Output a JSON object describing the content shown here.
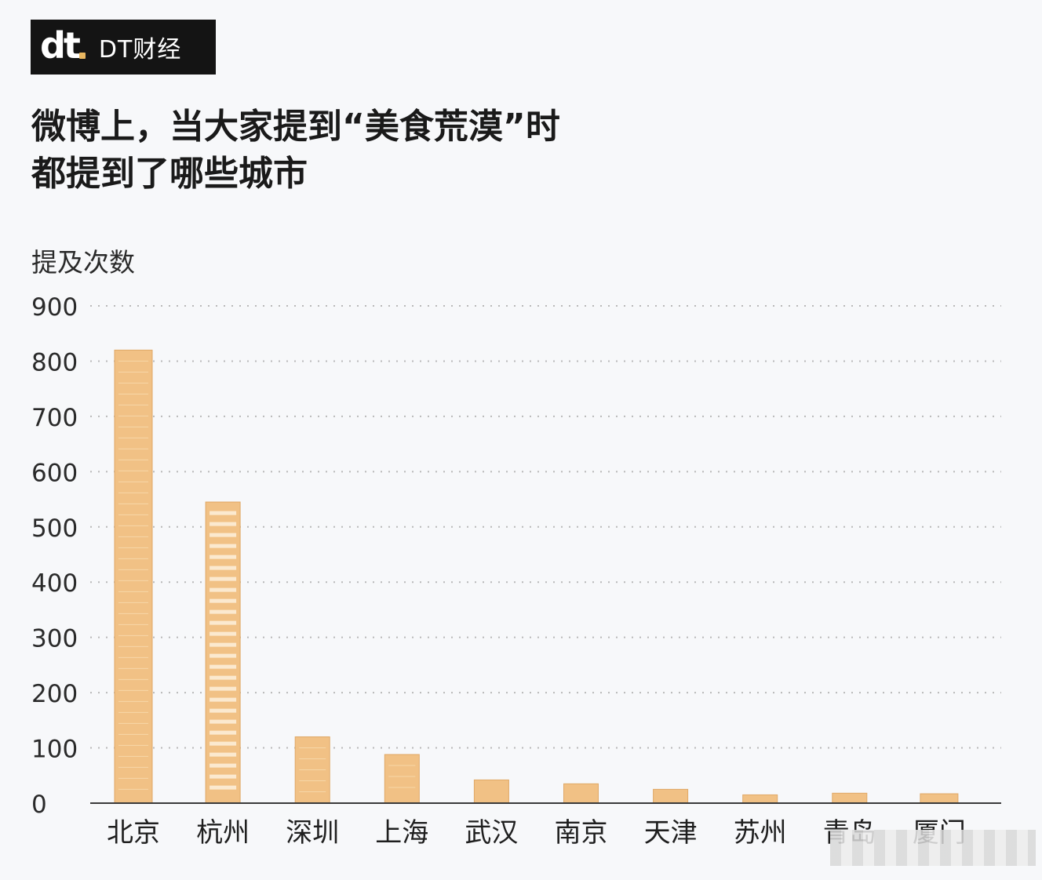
{
  "brand": {
    "mark": "dt",
    "name": "DT财经"
  },
  "title_lines": [
    "微博上，当大家提到“美食荒漠”时",
    "都提到了哪些城市"
  ],
  "colors": {
    "bar": "#f1c185",
    "bar_light": "#f6d7a8",
    "bar_edge": "#e0a866",
    "grid": "#b9b9b9",
    "axis": "#3a3a3a"
  },
  "chart_data": {
    "type": "bar",
    "title": "微博上，当大家提到“美食荒漠”时 都提到了哪些城市",
    "ylabel": "提及次数",
    "xlabel": "",
    "ylim": [
      0,
      900
    ],
    "yticks": [
      "0",
      "100",
      "200",
      "300",
      "400",
      "500",
      "600",
      "700",
      "800",
      "900"
    ],
    "categories": [
      "北京",
      "杭州",
      "深圳",
      "上海",
      "武汉",
      "南京",
      "天津",
      "苏州",
      "青岛",
      "厦门"
    ],
    "values": [
      820,
      545,
      120,
      88,
      42,
      35,
      25,
      15,
      18,
      17
    ],
    "grid": true
  }
}
